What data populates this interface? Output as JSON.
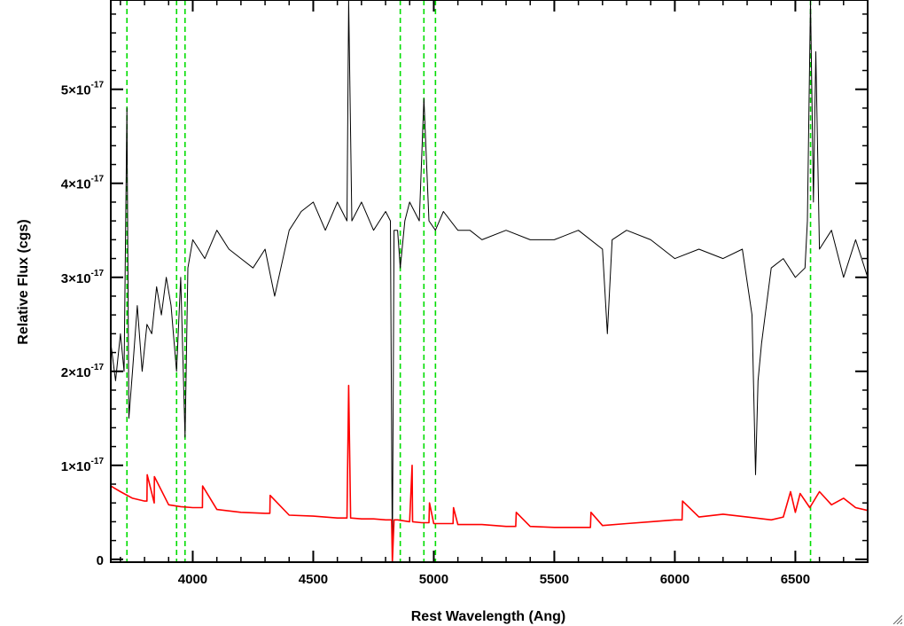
{
  "chart_data": {
    "type": "line",
    "title": "",
    "xlabel": "Rest Wavelength (Ang)",
    "ylabel": "Relative Flux (cgs)",
    "xlim": [
      3660,
      6800
    ],
    "ylim": [
      -3e-19,
      5.95e-17
    ],
    "x_ticks": [
      {
        "value": 4000,
        "label": "4000"
      },
      {
        "value": 4500,
        "label": "4500"
      },
      {
        "value": 5000,
        "label": "5000"
      },
      {
        "value": 5500,
        "label": "5500"
      },
      {
        "value": 6000,
        "label": "6000"
      },
      {
        "value": 6500,
        "label": "6500"
      }
    ],
    "y_ticks": [
      {
        "value": 0,
        "mantissa": "0",
        "exp": ""
      },
      {
        "value": 1e-17,
        "mantissa": "1×10",
        "exp": "-17"
      },
      {
        "value": 2e-17,
        "mantissa": "2×10",
        "exp": "-17"
      },
      {
        "value": 3e-17,
        "mantissa": "3×10",
        "exp": "-17"
      },
      {
        "value": 4e-17,
        "mantissa": "4×10",
        "exp": "-17"
      },
      {
        "value": 5e-17,
        "mantissa": "5×10",
        "exp": "-17"
      }
    ],
    "x_minor_step": 100,
    "y_minor_step": 2e-18,
    "grid": false,
    "series": [
      {
        "color": "#000000",
        "x": [
          3660,
          3680,
          3700,
          3715,
          3727,
          3735,
          3750,
          3770,
          3790,
          3810,
          3830,
          3850,
          3870,
          3890,
          3910,
          3933,
          3950,
          3968,
          3980,
          4000,
          4050,
          4100,
          4150,
          4200,
          4250,
          4300,
          4340,
          4400,
          4450,
          4500,
          4550,
          4600,
          4640,
          4647,
          4660,
          4700,
          4750,
          4800,
          4820,
          4828,
          4835,
          4850,
          4861,
          4880,
          4900,
          4940,
          4959,
          4980,
          5007,
          5040,
          5100,
          5150,
          5200,
          5300,
          5400,
          5500,
          5600,
          5700,
          5720,
          5740,
          5800,
          5900,
          6000,
          6100,
          6200,
          6280,
          6320,
          6335,
          6345,
          6360,
          6400,
          6450,
          6500,
          6540,
          6550,
          6563,
          6575,
          6585,
          6600,
          6650,
          6700,
          6750,
          6800
        ],
        "values": [
          2.3e-17,
          1.9e-17,
          2.4e-17,
          2e-17,
          4.8e-17,
          1.5e-17,
          2e-17,
          2.7e-17,
          2e-17,
          2.5e-17,
          2.4e-17,
          2.9e-17,
          2.6e-17,
          3e-17,
          2.7e-17,
          2e-17,
          3e-17,
          1.3e-17,
          3.1e-17,
          3.4e-17,
          3.2e-17,
          3.5e-17,
          3.3e-17,
          3.2e-17,
          3.1e-17,
          3.3e-17,
          2.8e-17,
          3.5e-17,
          3.7e-17,
          3.8e-17,
          3.5e-17,
          3.8e-17,
          3.6e-17,
          6e-17,
          3.6e-17,
          3.8e-17,
          3.5e-17,
          3.7e-17,
          3.6e-17,
          -5e-19,
          3.5e-17,
          3.5e-17,
          3.1e-17,
          3.6e-17,
          3.8e-17,
          3.6e-17,
          4.9e-17,
          3.6e-17,
          3.5e-17,
          3.7e-17,
          3.5e-17,
          3.5e-17,
          3.4e-17,
          3.5e-17,
          3.4e-17,
          3.4e-17,
          3.5e-17,
          3.3e-17,
          2.4e-17,
          3.4e-17,
          3.5e-17,
          3.4e-17,
          3.2e-17,
          3.3e-17,
          3.2e-17,
          3.3e-17,
          2.6e-17,
          9e-18,
          1.9e-17,
          2.3e-17,
          3.1e-17,
          3.2e-17,
          3e-17,
          3.1e-17,
          3.6e-17,
          6e-17,
          3.8e-17,
          5.4e-17,
          3.3e-17,
          3.5e-17,
          3e-17,
          3.4e-17,
          3e-17
        ]
      },
      {
        "color": "#ff0000",
        "x": [
          3660,
          3700,
          3750,
          3800,
          3810,
          3811,
          3840,
          3841,
          3900,
          3950,
          4000,
          4040,
          4041,
          4100,
          4200,
          4300,
          4320,
          4321,
          4400,
          4500,
          4600,
          4640,
          4647,
          4655,
          4700,
          4750,
          4800,
          4825,
          4828,
          4835,
          4850,
          4900,
          4910,
          4912,
          4950,
          4980,
          4982,
          5000,
          5080,
          5082,
          5100,
          5200,
          5300,
          5340,
          5342,
          5400,
          5500,
          5600,
          5650,
          5652,
          5700,
          5800,
          5900,
          6000,
          6030,
          6032,
          6100,
          6200,
          6300,
          6400,
          6450,
          6480,
          6500,
          6520,
          6560,
          6600,
          6650,
          6700,
          6750,
          6800
        ],
        "values": [
          7.8e-18,
          7.2e-18,
          6.5e-18,
          6.2e-18,
          6.2e-18,
          9e-18,
          6e-18,
          8.8e-18,
          5.8e-18,
          5.6e-18,
          5.5e-18,
          5.5e-18,
          7.8e-18,
          5.3e-18,
          5e-18,
          4.9e-18,
          4.9e-18,
          6.8e-18,
          4.7e-18,
          4.6e-18,
          4.4e-18,
          4.4e-18,
          1.85e-17,
          4.4e-18,
          4.3e-18,
          4.3e-18,
          4.2e-18,
          4.2e-18,
          -5e-19,
          4.2e-18,
          4.2e-18,
          4e-18,
          1e-17,
          4e-18,
          3.9e-18,
          3.9e-18,
          6e-18,
          3.8e-18,
          3.8e-18,
          5.5e-18,
          3.7e-18,
          3.7e-18,
          3.5e-18,
          3.5e-18,
          5e-18,
          3.5e-18,
          3.4e-18,
          3.4e-18,
          3.4e-18,
          5e-18,
          3.6e-18,
          3.8e-18,
          4e-18,
          4.2e-18,
          4.2e-18,
          6.2e-18,
          4.5e-18,
          4.8e-18,
          4.5e-18,
          4.2e-18,
          4.5e-18,
          7.2e-18,
          5e-18,
          7e-18,
          5.5e-18,
          7.2e-18,
          5.8e-18,
          6.5e-18,
          5.5e-18,
          5.2e-18
        ]
      }
    ],
    "vlines": {
      "color": "#00dd00",
      "style": "dashed",
      "x": [
        3727,
        3933,
        3968,
        4861,
        4959,
        5007,
        6563
      ]
    }
  }
}
